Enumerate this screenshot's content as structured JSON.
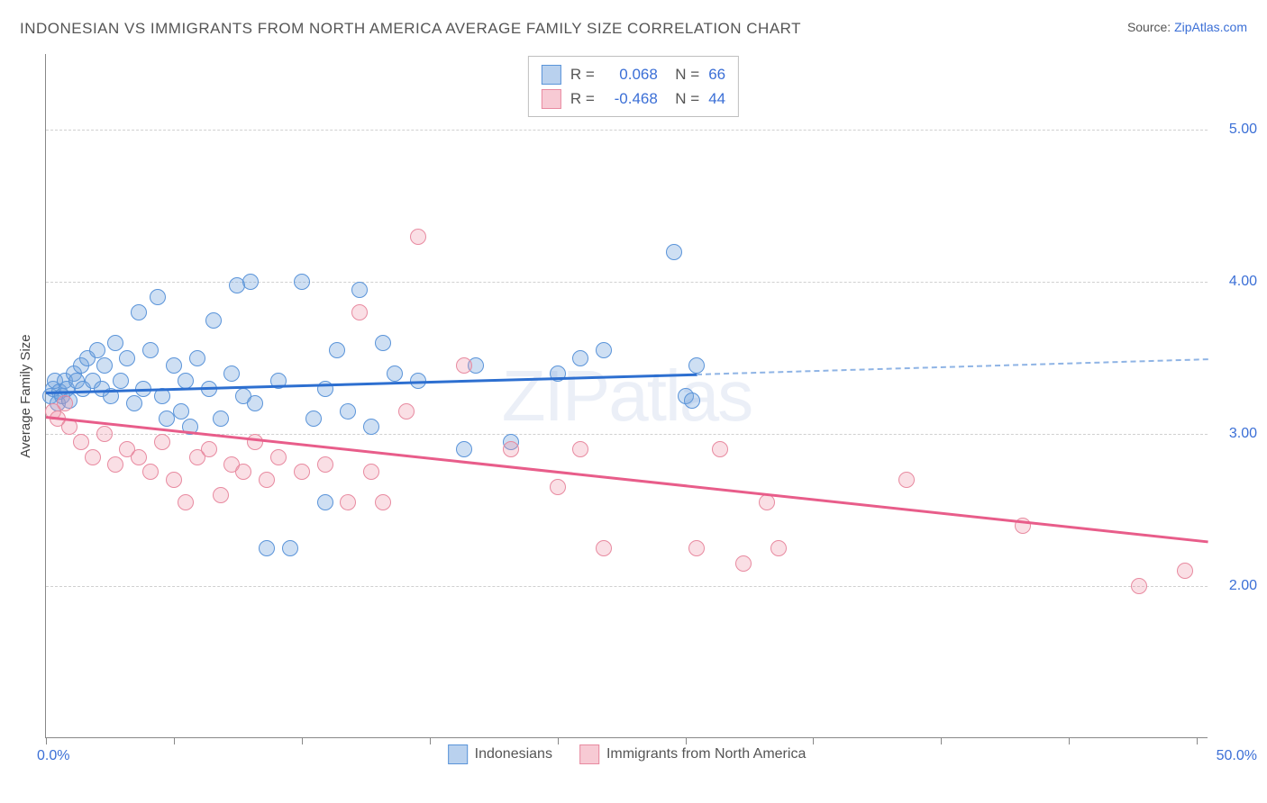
{
  "title": "INDONESIAN VS IMMIGRANTS FROM NORTH AMERICA AVERAGE FAMILY SIZE CORRELATION CHART",
  "source_label": "Source: ",
  "source_link": "ZipAtlas.com",
  "watermark": "ZIPatlas",
  "y_axis_title": "Average Family Size",
  "chart": {
    "type": "scatter-correlation",
    "xlim": [
      0,
      50
    ],
    "ylim": [
      1.0,
      5.5
    ],
    "x_ticks": [
      0,
      5.5,
      11,
      16.5,
      22,
      27.5,
      33,
      38.5,
      44,
      49.5
    ],
    "y_grid": [
      2.0,
      3.0,
      4.0,
      5.0
    ],
    "y_tick_labels": [
      "2.00",
      "3.00",
      "4.00",
      "5.00"
    ],
    "x_min_label": "0.0%",
    "x_max_label": "50.0%",
    "background_color": "#ffffff",
    "grid_color": "#d0d0d0",
    "axis_color": "#888888",
    "label_color": "#3b6fd6",
    "title_color": "#555555",
    "title_fontsize": 17,
    "tick_fontsize": 16,
    "marker_radius": 9,
    "watermark_color": "rgba(120,150,200,0.15)"
  },
  "series": [
    {
      "name": "Indonesians",
      "color_fill": "rgba(115,164,222,0.35)",
      "color_stroke": "#5a94d9",
      "R": "0.068",
      "N": "66",
      "trend": {
        "x1": 0,
        "y1": 3.28,
        "x_solid_end": 28,
        "y_solid_end": 3.4,
        "x2": 50,
        "y2": 3.5,
        "color_solid": "#2d6fd0",
        "color_dash": "#8fb4e5",
        "width": 2.5
      },
      "points": [
        [
          0.2,
          3.25
        ],
        [
          0.3,
          3.3
        ],
        [
          0.4,
          3.35
        ],
        [
          0.5,
          3.2
        ],
        [
          0.6,
          3.28
        ],
        [
          0.7,
          3.25
        ],
        [
          0.8,
          3.35
        ],
        [
          0.9,
          3.3
        ],
        [
          1.0,
          3.22
        ],
        [
          1.2,
          3.4
        ],
        [
          1.3,
          3.35
        ],
        [
          1.5,
          3.45
        ],
        [
          1.6,
          3.3
        ],
        [
          1.8,
          3.5
        ],
        [
          2.0,
          3.35
        ],
        [
          2.2,
          3.55
        ],
        [
          2.4,
          3.3
        ],
        [
          2.5,
          3.45
        ],
        [
          2.8,
          3.25
        ],
        [
          3.0,
          3.6
        ],
        [
          3.2,
          3.35
        ],
        [
          3.5,
          3.5
        ],
        [
          3.8,
          3.2
        ],
        [
          4.0,
          3.8
        ],
        [
          4.2,
          3.3
        ],
        [
          4.5,
          3.55
        ],
        [
          4.8,
          3.9
        ],
        [
          5.0,
          3.25
        ],
        [
          5.2,
          3.1
        ],
        [
          5.5,
          3.45
        ],
        [
          5.8,
          3.15
        ],
        [
          6.0,
          3.35
        ],
        [
          6.2,
          3.05
        ],
        [
          6.5,
          3.5
        ],
        [
          7.0,
          3.3
        ],
        [
          7.2,
          3.75
        ],
        [
          7.5,
          3.1
        ],
        [
          8.0,
          3.4
        ],
        [
          8.2,
          3.98
        ],
        [
          8.5,
          3.25
        ],
        [
          8.8,
          4.0
        ],
        [
          9.0,
          3.2
        ],
        [
          9.5,
          2.25
        ],
        [
          10.0,
          3.35
        ],
        [
          10.5,
          2.25
        ],
        [
          11.0,
          4.0
        ],
        [
          11.5,
          3.1
        ],
        [
          12.0,
          3.3
        ],
        [
          12.5,
          3.55
        ],
        [
          13.0,
          3.15
        ],
        [
          13.5,
          3.95
        ],
        [
          14.0,
          3.05
        ],
        [
          14.5,
          3.6
        ],
        [
          15.0,
          3.4
        ],
        [
          12.0,
          2.55
        ],
        [
          16.0,
          3.35
        ],
        [
          18.0,
          2.9
        ],
        [
          18.5,
          3.45
        ],
        [
          20.0,
          2.95
        ],
        [
          22.0,
          3.4
        ],
        [
          23.0,
          3.5
        ],
        [
          24.0,
          3.55
        ],
        [
          27.0,
          4.2
        ],
        [
          27.5,
          3.25
        ],
        [
          27.8,
          3.22
        ],
        [
          28.0,
          3.45
        ]
      ]
    },
    {
      "name": "Immigrants from North America",
      "color_fill": "rgba(240,150,170,0.30)",
      "color_stroke": "#e88aa0",
      "R": "-0.468",
      "N": "44",
      "trend": {
        "x1": 0,
        "y1": 3.12,
        "x_solid_end": 50,
        "y_solid_end": 2.3,
        "x2": 50,
        "y2": 2.3,
        "color_solid": "#e85d8a",
        "width": 2.5
      },
      "points": [
        [
          0.3,
          3.15
        ],
        [
          0.5,
          3.1
        ],
        [
          0.8,
          3.2
        ],
        [
          1.0,
          3.05
        ],
        [
          1.5,
          2.95
        ],
        [
          2.0,
          2.85
        ],
        [
          2.5,
          3.0
        ],
        [
          3.0,
          2.8
        ],
        [
          3.5,
          2.9
        ],
        [
          4.0,
          2.85
        ],
        [
          4.5,
          2.75
        ],
        [
          5.0,
          2.95
        ],
        [
          5.5,
          2.7
        ],
        [
          6.0,
          2.55
        ],
        [
          6.5,
          2.85
        ],
        [
          7.0,
          2.9
        ],
        [
          7.5,
          2.6
        ],
        [
          8.0,
          2.8
        ],
        [
          8.5,
          2.75
        ],
        [
          9.0,
          2.95
        ],
        [
          9.5,
          2.7
        ],
        [
          10.0,
          2.85
        ],
        [
          11.0,
          2.75
        ],
        [
          12.0,
          2.8
        ],
        [
          13.0,
          2.55
        ],
        [
          13.5,
          3.8
        ],
        [
          14.0,
          2.75
        ],
        [
          14.5,
          2.55
        ],
        [
          15.5,
          3.15
        ],
        [
          16.0,
          4.3
        ],
        [
          18.0,
          3.45
        ],
        [
          20.0,
          2.9
        ],
        [
          22.0,
          2.65
        ],
        [
          23.0,
          2.9
        ],
        [
          24.0,
          2.25
        ],
        [
          28.0,
          2.25
        ],
        [
          29.0,
          2.9
        ],
        [
          30.0,
          2.15
        ],
        [
          31.0,
          2.55
        ],
        [
          31.5,
          2.25
        ],
        [
          37.0,
          2.7
        ],
        [
          42.0,
          2.4
        ],
        [
          47.0,
          2.0
        ],
        [
          49.0,
          2.1
        ]
      ]
    }
  ]
}
